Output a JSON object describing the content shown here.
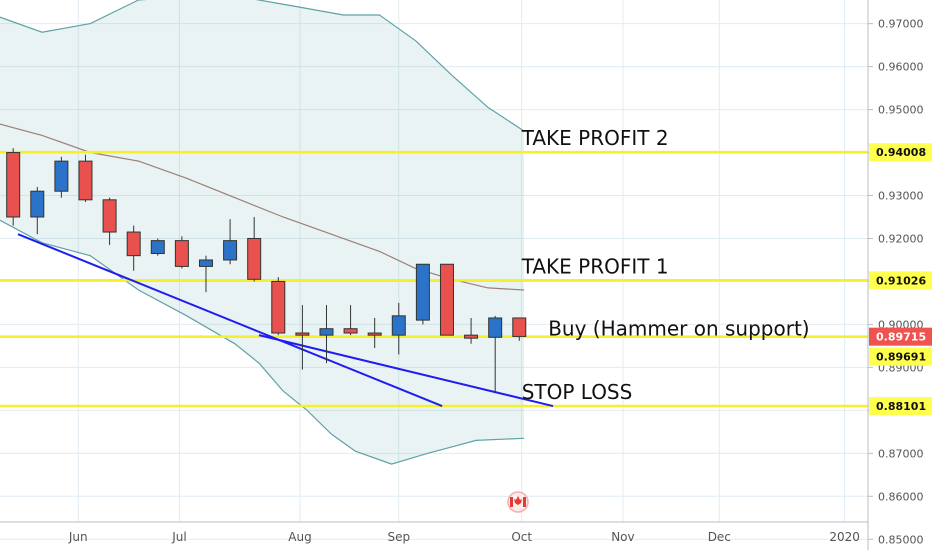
{
  "chart_data": {
    "type": "candlestick",
    "title": "",
    "xlabel": "",
    "ylabel": "",
    "ylim": [
      0.8475,
      0.9755
    ],
    "grid": true,
    "x_ticks": [
      {
        "label": "Jun",
        "t": 2.5
      },
      {
        "label": "Jul",
        "t": 6.7
      },
      {
        "label": "Aug",
        "t": 11.7
      },
      {
        "label": "Sep",
        "t": 15.8
      },
      {
        "label": "Oct",
        "t": 20.9
      },
      {
        "label": "Nov",
        "t": 25.1
      },
      {
        "label": "Dec",
        "t": 29.1
      },
      {
        "label": "2020",
        "t": 34.3
      }
    ],
    "y_ticks": [
      "0.85000",
      "0.86000",
      "0.87000",
      "0.88000",
      "0.89000",
      "0.90000",
      "0.91000",
      "0.92000",
      "0.93000",
      "0.94000",
      "0.95000",
      "0.96000",
      "0.97000"
    ],
    "candles": [
      {
        "t": -0.2,
        "o": 0.94,
        "h": 0.941,
        "l": 0.923,
        "c": 0.925
      },
      {
        "t": 0.8,
        "o": 0.925,
        "h": 0.932,
        "l": 0.921,
        "c": 0.931
      },
      {
        "t": 1.8,
        "o": 0.931,
        "h": 0.939,
        "l": 0.9295,
        "c": 0.938
      },
      {
        "t": 2.8,
        "o": 0.938,
        "h": 0.9395,
        "l": 0.9285,
        "c": 0.929
      },
      {
        "t": 3.8,
        "o": 0.929,
        "h": 0.9295,
        "l": 0.9185,
        "c": 0.9215
      },
      {
        "t": 4.8,
        "o": 0.9215,
        "h": 0.923,
        "l": 0.9125,
        "c": 0.916
      },
      {
        "t": 5.8,
        "o": 0.9165,
        "h": 0.92,
        "l": 0.916,
        "c": 0.9195
      },
      {
        "t": 6.8,
        "o": 0.9195,
        "h": 0.9205,
        "l": 0.913,
        "c": 0.9135
      },
      {
        "t": 7.8,
        "o": 0.9135,
        "h": 0.916,
        "l": 0.9075,
        "c": 0.915
      },
      {
        "t": 8.8,
        "o": 0.915,
        "h": 0.9245,
        "l": 0.914,
        "c": 0.9195
      },
      {
        "t": 9.8,
        "o": 0.92,
        "h": 0.925,
        "l": 0.91,
        "c": 0.9105
      },
      {
        "t": 10.8,
        "o": 0.91,
        "h": 0.911,
        "l": 0.8975,
        "c": 0.898
      },
      {
        "t": 11.8,
        "o": 0.898,
        "h": 0.9045,
        "l": 0.8895,
        "c": 0.8975
      },
      {
        "t": 12.8,
        "o": 0.8975,
        "h": 0.9045,
        "l": 0.891,
        "c": 0.899
      },
      {
        "t": 13.8,
        "o": 0.899,
        "h": 0.9045,
        "l": 0.8975,
        "c": 0.898
      },
      {
        "t": 14.8,
        "o": 0.898,
        "h": 0.9015,
        "l": 0.8945,
        "c": 0.8975
      },
      {
        "t": 15.8,
        "o": 0.8975,
        "h": 0.905,
        "l": 0.893,
        "c": 0.902
      },
      {
        "t": 16.8,
        "o": 0.901,
        "h": 0.914,
        "l": 0.9,
        "c": 0.914
      },
      {
        "t": 17.8,
        "o": 0.914,
        "h": 0.914,
        "l": 0.8975,
        "c": 0.8975
      },
      {
        "t": 18.8,
        "o": 0.8975,
        "h": 0.9015,
        "l": 0.8955,
        "c": 0.8968
      },
      {
        "t": 19.8,
        "o": 0.897,
        "h": 0.902,
        "l": 0.884,
        "c": 0.9015
      },
      {
        "t": 20.8,
        "o": 0.9015,
        "h": 0.9015,
        "l": 0.8962,
        "c": 0.8972
      }
    ],
    "upper_band": [
      [
        -1,
        0.972
      ],
      [
        1,
        0.968
      ],
      [
        3,
        0.97
      ],
      [
        5,
        0.9755
      ],
      [
        7.5,
        0.9765
      ],
      [
        9.5,
        0.976
      ],
      [
        11.5,
        0.974
      ],
      [
        13.5,
        0.972
      ],
      [
        15,
        0.972
      ],
      [
        16.5,
        0.966
      ],
      [
        18,
        0.958
      ],
      [
        19.5,
        0.9505
      ],
      [
        21,
        0.945
      ]
    ],
    "middle_band": [
      [
        -1,
        0.947
      ],
      [
        1,
        0.944
      ],
      [
        3,
        0.94
      ],
      [
        5,
        0.938
      ],
      [
        7,
        0.934
      ],
      [
        9,
        0.9295
      ],
      [
        11,
        0.925
      ],
      [
        13,
        0.921
      ],
      [
        15,
        0.917
      ],
      [
        16.5,
        0.913
      ],
      [
        18,
        0.9105
      ],
      [
        19.5,
        0.9085
      ],
      [
        21,
        0.908
      ]
    ],
    "lower_band": [
      [
        -1,
        0.925
      ],
      [
        1,
        0.919
      ],
      [
        3,
        0.916
      ],
      [
        5,
        0.908
      ],
      [
        7,
        0.902
      ],
      [
        9,
        0.8955
      ],
      [
        10,
        0.891
      ],
      [
        11,
        0.8845
      ],
      [
        12,
        0.88
      ],
      [
        13,
        0.8745
      ],
      [
        14,
        0.8705
      ],
      [
        15.5,
        0.8675
      ],
      [
        17,
        0.87
      ],
      [
        18,
        0.8715
      ],
      [
        19,
        0.873
      ],
      [
        21,
        0.8735
      ]
    ],
    "trend_lines": [
      {
        "from": [
          0.0,
          0.921
        ],
        "to": [
          17.6,
          0.881
        ]
      },
      {
        "from": [
          10.0,
          0.8975
        ],
        "to": [
          22.2,
          0.881
        ]
      }
    ],
    "levels": [
      {
        "label": "0.94008",
        "value": 0.94008,
        "annotation": "TAKE PROFIT 2",
        "annotation_t": 20.9
      },
      {
        "label": "0.91026",
        "value": 0.91026,
        "annotation": "TAKE PROFIT 1",
        "annotation_t": 20.9
      },
      {
        "label": "0.89715",
        "value": 0.89715,
        "annotation": "Buy (Hammer on support)",
        "annotation_t": 22.0
      },
      {
        "label": "0.89691",
        "value": 0.89691,
        "annotation": "",
        "annotation_t": 0
      },
      {
        "label": "0.88101",
        "value": 0.88101,
        "annotation": "STOP LOSS",
        "annotation_t": 20.9
      }
    ],
    "current_price_label": "0.89715",
    "colors": {
      "up": "#2b73c8",
      "down": "#e8514d",
      "level": "#f5f02a",
      "level_label_bg": "#ffff4d",
      "current_bg": "#ef5350",
      "trend": "#1e1ef0",
      "band": "#5fa2a6",
      "middle": "#9c7f77",
      "grid": "#e1ecf2",
      "axis_text": "#555555"
    },
    "flag_icon": "canada-flag-icon"
  }
}
